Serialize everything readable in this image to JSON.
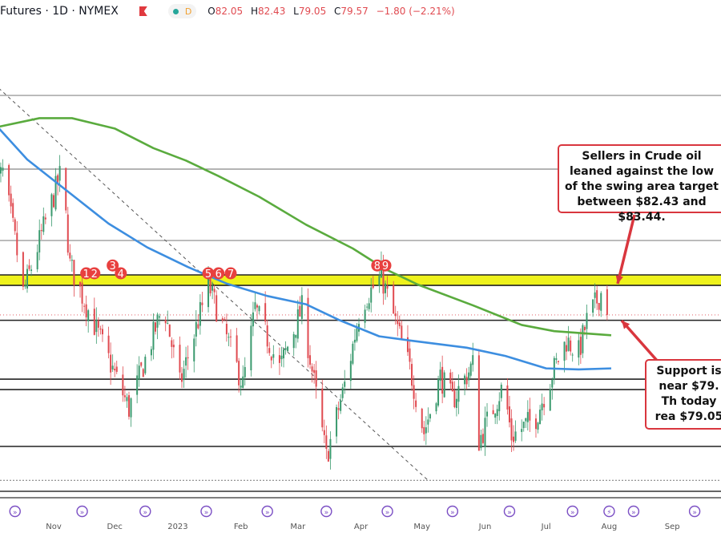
{
  "header": {
    "symbol": "Futures · 1D · NYMEX",
    "interval_badge": "D",
    "open_label": "O",
    "open": "82.05",
    "high_label": "H",
    "high": "82.43",
    "low_label": "L",
    "low": "79.05",
    "close_label": "C",
    "close": "79.57",
    "change": "−1.80 (−2.21%)"
  },
  "colors": {
    "up": "#3a9a6e",
    "down": "#e04a50",
    "ma_green": "#5aab3e",
    "ma_blue": "#3d8ee0",
    "zone": "#eef21c",
    "annotation": "#d9363e",
    "event_icon": "#7b4fc4"
  },
  "annotations": {
    "resistance": "Sellers in Crude oil leaned against the low of the swing area target between $82.43 and $83.44.",
    "support": "Support is near $79. Th today rea $79.05"
  },
  "chart_data": {
    "type": "candlestick",
    "xlim": [
      "2022-10-01",
      "2023-09-30"
    ],
    "ylim": [
      62.5,
      110.5
    ],
    "x_tick_labels": [
      {
        "label": "Nov",
        "date": "2022-11-01"
      },
      {
        "label": "Dec",
        "date": "2022-12-01"
      },
      {
        "label": "2023",
        "date": "2023-01-01"
      },
      {
        "label": "Feb",
        "date": "2023-02-01"
      },
      {
        "label": "Mar",
        "date": "2023-03-01"
      },
      {
        "label": "Apr",
        "date": "2023-04-01"
      },
      {
        "label": "May",
        "date": "2023-05-01"
      },
      {
        "label": "Jun",
        "date": "2023-06-01"
      },
      {
        "label": "Jul",
        "date": "2023-07-01"
      },
      {
        "label": "Aug",
        "date": "2023-08-01"
      },
      {
        "label": "Sep",
        "date": "2023-09-01"
      }
    ],
    "price_swings": [
      [
        "2022-10-01",
        91.5
      ],
      [
        "2022-10-08",
        93.3
      ],
      [
        "2022-10-14",
        86.8
      ],
      [
        "2022-10-18",
        81.7
      ],
      [
        "2022-11-06",
        93.6
      ],
      [
        "2022-11-10",
        84.4
      ],
      [
        "2022-11-18",
        80.5
      ],
      [
        "2022-12-09",
        70.5
      ],
      [
        "2022-12-26",
        80.6
      ],
      [
        "2023-01-03",
        72.8
      ],
      [
        "2023-01-17",
        82.5
      ],
      [
        "2023-02-03",
        72.8
      ],
      [
        "2023-02-09",
        80.2
      ],
      [
        "2023-02-21",
        74.4
      ],
      [
        "2023-03-04",
        80.2
      ],
      [
        "2023-03-16",
        65.8
      ],
      [
        "2023-03-26",
        73.6
      ],
      [
        "2023-04-02",
        80.6
      ],
      [
        "2023-04-12",
        83.3
      ],
      [
        "2023-04-26",
        74.4
      ],
      [
        "2023-05-03",
        68.2
      ],
      [
        "2023-05-11",
        73.6
      ],
      [
        "2023-05-17",
        71.3
      ],
      [
        "2023-05-27",
        74.8
      ],
      [
        "2023-05-30",
        67.4
      ],
      [
        "2023-06-11",
        72.8
      ],
      [
        "2023-06-15",
        67.8
      ],
      [
        "2023-06-27",
        69.7
      ],
      [
        "2023-07-06",
        74.4
      ],
      [
        "2023-07-12",
        77.1
      ],
      [
        "2023-07-18",
        75.9
      ],
      [
        "2023-07-22",
        79.0
      ],
      [
        "2023-07-30",
        82.1
      ]
    ],
    "last_candle": {
      "date": "2023-07-31",
      "open": 82.05,
      "high": 82.43,
      "low": 79.05,
      "close": 79.57
    },
    "moving_averages": [
      {
        "color": "green",
        "points": [
          [
            "2022-10-01",
            97.6
          ],
          [
            "2022-10-25",
            98.6
          ],
          [
            "2022-11-10",
            98.6
          ],
          [
            "2022-12-01",
            97.6
          ],
          [
            "2022-12-20",
            95.7
          ],
          [
            "2023-01-05",
            94.5
          ],
          [
            "2023-01-21",
            93.0
          ],
          [
            "2023-02-10",
            91.0
          ],
          [
            "2023-03-05",
            88.3
          ],
          [
            "2023-03-28",
            86.0
          ],
          [
            "2023-04-13",
            84.0
          ],
          [
            "2023-04-29",
            82.5
          ],
          [
            "2023-05-26",
            80.5
          ],
          [
            "2023-06-19",
            78.6
          ],
          [
            "2023-07-05",
            78.0
          ],
          [
            "2023-08-02",
            77.6
          ]
        ]
      },
      {
        "color": "blue",
        "points": [
          [
            "2022-10-01",
            98.5
          ],
          [
            "2022-10-19",
            94.6
          ],
          [
            "2022-11-08",
            91.5
          ],
          [
            "2022-11-28",
            88.4
          ],
          [
            "2022-12-17",
            86.1
          ],
          [
            "2023-01-06",
            84.2
          ],
          [
            "2023-01-25",
            82.6
          ],
          [
            "2023-02-14",
            81.4
          ],
          [
            "2023-03-05",
            80.6
          ],
          [
            "2023-03-21",
            79.1
          ],
          [
            "2023-04-10",
            77.5
          ],
          [
            "2023-04-25",
            77.1
          ],
          [
            "2023-05-23",
            76.4
          ],
          [
            "2023-06-11",
            75.6
          ],
          [
            "2023-07-01",
            74.4
          ],
          [
            "2023-07-17",
            74.3
          ],
          [
            "2023-08-02",
            74.4
          ]
        ]
      }
    ],
    "horizontal_levels": [
      100.8,
      93.67,
      86.77,
      83.44,
      82.43,
      79.05,
      73.36,
      72.35,
      66.85,
      63.57
    ],
    "resistance_zone": [
      82.43,
      83.44
    ],
    "current_price": 79.57,
    "trendline": [
      [
        "2022-10-05",
        101.5
      ],
      [
        "2023-05-04",
        63.57
      ]
    ],
    "swing_markers": [
      {
        "label": "1",
        "date": "2022-11-17",
        "price": 83.44
      },
      {
        "label": "2",
        "date": "2022-11-21",
        "price": 83.44
      },
      {
        "label": "3",
        "date": "2022-11-30",
        "price": 84.2
      },
      {
        "label": "4",
        "date": "2022-12-04",
        "price": 83.44
      },
      {
        "label": "5",
        "date": "2023-01-16",
        "price": 83.44
      },
      {
        "label": "6",
        "date": "2023-01-21",
        "price": 83.44
      },
      {
        "label": "7",
        "date": "2023-01-27",
        "price": 83.44
      },
      {
        "label": "8",
        "date": "2023-04-09",
        "price": 84.2
      },
      {
        "label": "9",
        "date": "2023-04-13",
        "price": 84.2
      }
    ],
    "event_icon_dates": [
      "2022-10-13",
      "2022-11-15",
      "2022-12-16",
      "2023-01-15",
      "2023-02-14",
      "2023-03-15",
      "2023-04-14",
      "2023-05-16",
      "2023-06-13",
      "2023-07-14",
      "2023-08-01",
      "2023-08-13",
      "2023-09-12"
    ]
  }
}
